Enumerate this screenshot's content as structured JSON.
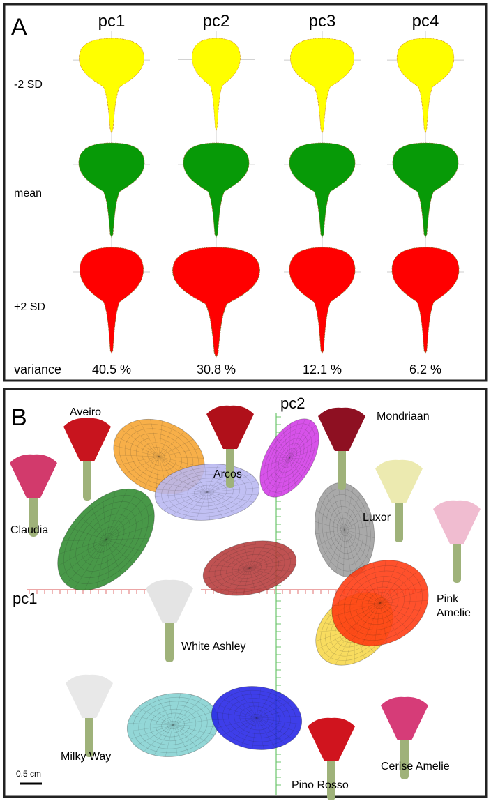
{
  "panel_a": {
    "label": "A",
    "columns": [
      "pc1",
      "pc2",
      "pc3",
      "pc4"
    ],
    "rows": [
      "-2 SD",
      "mean",
      "+2 SD"
    ],
    "variance_label": "variance",
    "variance": [
      "40.5 %",
      "30.8 %",
      "12.1 %",
      "6.2 %"
    ]
  },
  "panel_b": {
    "label": "B",
    "x_axis": "pc1",
    "y_axis": "pc2",
    "scale_bar": "0.5 cm",
    "cultivars": [
      "Aveiro",
      "Mondriaan",
      "Arcos",
      "Claudia",
      "Luxor",
      "Pink Amelie",
      "White Ashley",
      "Milky Way",
      "Cerise Amelie",
      "Pino Rosso"
    ]
  }
}
